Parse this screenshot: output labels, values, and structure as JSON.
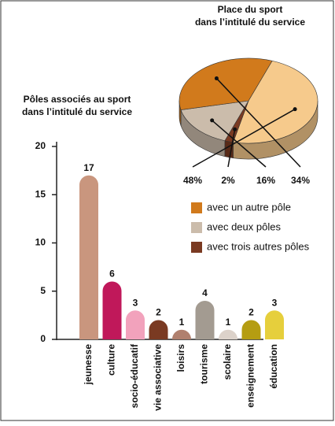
{
  "chart_data": [
    {
      "type": "bar",
      "title": [
        "Pôles associés au sport",
        "dans l’intitulé du service"
      ],
      "categories": [
        "jeunesse",
        "culture",
        "socio-éducatif",
        "vie associative",
        "loisirs",
        "tourisme",
        "scolaire",
        "enseignement",
        "éducation"
      ],
      "values": [
        17,
        6,
        3,
        2,
        1,
        4,
        1,
        2,
        3
      ],
      "colors": [
        "#c9967e",
        "#c0185a",
        "#f2a2bc",
        "#7a3a22",
        "#b0806e",
        "#a39b91",
        "#dcd2ca",
        "#b59d12",
        "#e6cf3c"
      ],
      "ylim": [
        0,
        20
      ],
      "yticks": [
        0,
        5,
        10,
        15,
        20
      ]
    },
    {
      "type": "pie",
      "title": [
        "Place du sport",
        "dans l’intitulé du service"
      ],
      "labels": [
        null,
        "avec trois autres pôles",
        "avec deux pôles",
        "avec un autre pôle"
      ],
      "values": [
        48,
        2,
        16,
        34
      ],
      "value_labels": [
        "48%",
        "2%",
        "16%",
        "34%"
      ],
      "colors": [
        "#f6ca8c",
        "#7a3a22",
        "#cbbcab",
        "#d17a1c"
      ]
    }
  ]
}
